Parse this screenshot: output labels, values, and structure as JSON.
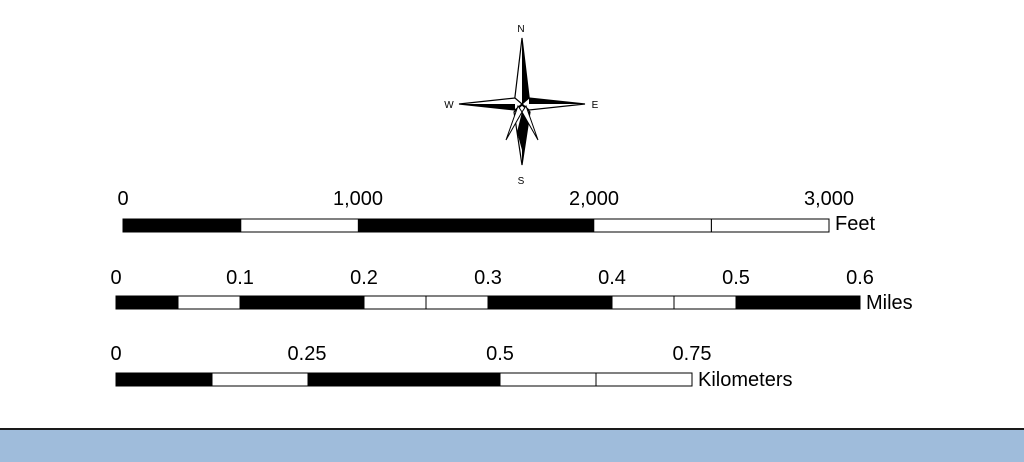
{
  "north_arrow": {
    "north": "N",
    "south": "S",
    "east": "E",
    "west": "W"
  },
  "scale_bars": [
    {
      "unit": "Feet",
      "ticks": [
        "0",
        "1,000",
        "2,000",
        "3,000"
      ],
      "segment_count": 6
    },
    {
      "unit": "Miles",
      "ticks": [
        "0",
        "0.1",
        "0.2",
        "0.3",
        "0.4",
        "0.5",
        "0.6"
      ],
      "segment_count": 12
    },
    {
      "unit": "Kilometers",
      "ticks": [
        "0",
        "0.25",
        "0.5",
        "0.75"
      ],
      "segment_count": 6
    }
  ],
  "colors": {
    "bar_fill": "#000000",
    "bar_alt": "#ffffff",
    "band": "#9fbcdb"
  }
}
